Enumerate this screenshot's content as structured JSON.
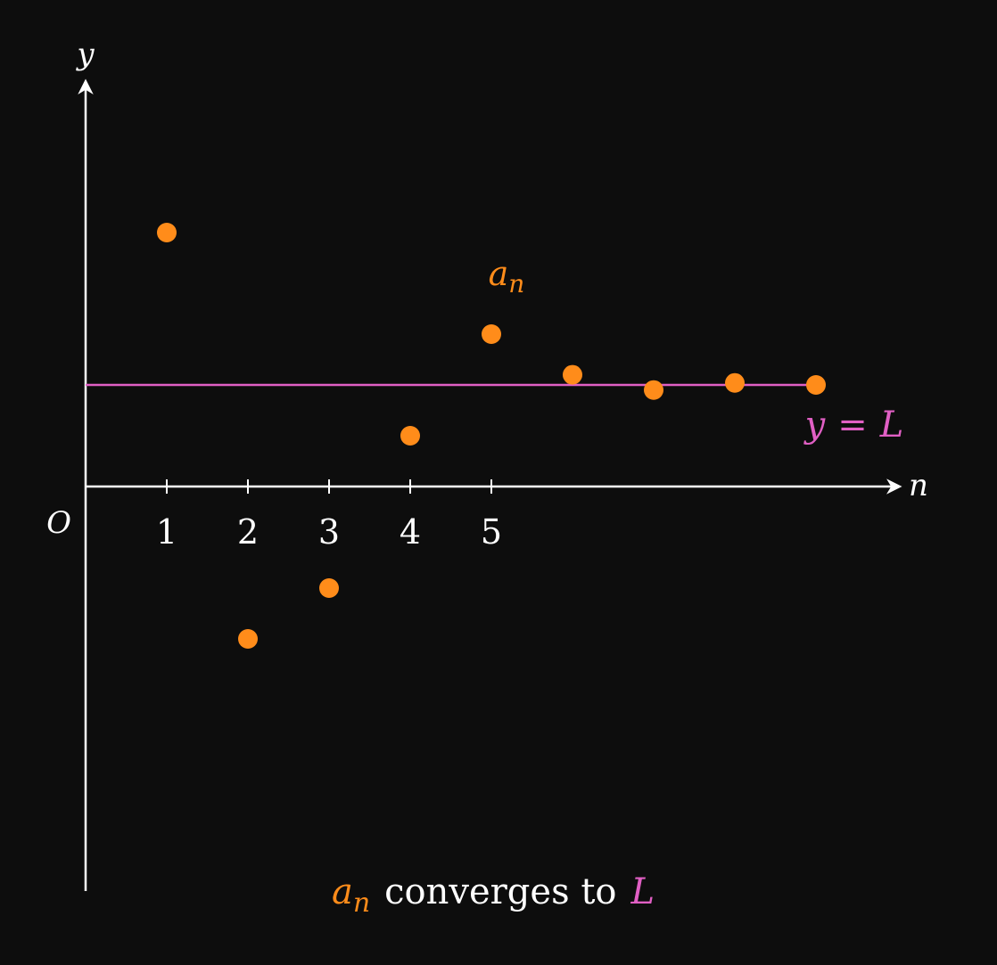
{
  "chart_data": {
    "type": "scatter",
    "axes": {
      "x_label": "n",
      "y_label": "y",
      "origin_label": "O",
      "x_ticks": [
        "1",
        "2",
        "3",
        "4",
        "5"
      ]
    },
    "series": [
      {
        "name": "a_n",
        "label_base": "a",
        "label_sub": "n",
        "color": "#ff8c1a",
        "points": [
          {
            "n": 1,
            "y": 2.5
          },
          {
            "n": 2,
            "y": -1.5
          },
          {
            "n": 3,
            "y": -1.0
          },
          {
            "n": 4,
            "y": 0.5
          },
          {
            "n": 5,
            "y": 1.5
          },
          {
            "n": 6,
            "y": 1.1
          },
          {
            "n": 7,
            "y": 0.95
          },
          {
            "n": 8,
            "y": 1.02
          },
          {
            "n": 9,
            "y": 1.0
          }
        ]
      }
    ],
    "limit_line": {
      "label_var": "y",
      "label_eq": "=",
      "label_limit": "L",
      "value": 1.0,
      "x_start": 0,
      "x_end": 9,
      "color": "#e05fc4"
    },
    "caption": {
      "part1_base": "a",
      "part1_sub": "n",
      "part2": "converges to",
      "part3": "L"
    }
  },
  "colors": {
    "background": "#0d0d0d",
    "axis": "#ffffff",
    "points": "#ff8c1a",
    "limit": "#e05fc4"
  }
}
